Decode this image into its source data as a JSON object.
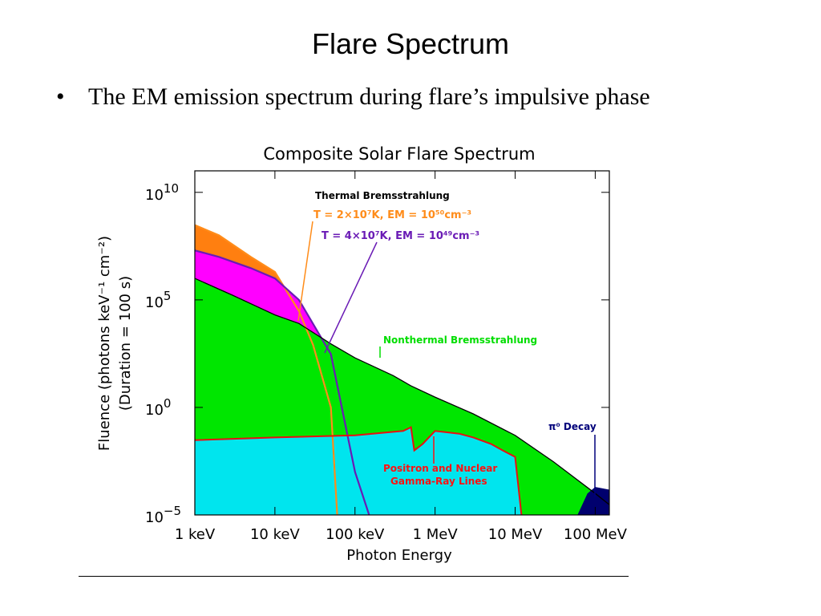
{
  "slide": {
    "title": "Flare Spectrum",
    "bullet_symbol": "•",
    "bullet_text": "The EM emission spectrum during flare’s impulsive phase"
  },
  "colors": {
    "thermal_fill": "#ff7f10",
    "nonthermal_fill": "#00e600",
    "nuclear_fill": "#00e5ee",
    "pion_fill": "#00006e",
    "magenta": "#ff00ff",
    "orange_curve": "#ff8c1a",
    "purple_curve": "#6a1bb5",
    "red_curve": "#e81010",
    "black_envelope": "#000000",
    "green_label": "#00dd00",
    "red_label": "#ff1111",
    "navy_label": "#00007a"
  },
  "chart_data": {
    "type": "area",
    "title": "Composite Solar Flare Spectrum",
    "xlabel": "Photon Energy",
    "ylabel_line1": "Fluence (photons keV⁻¹ cm⁻²)",
    "ylabel_line2": "(Duration = 100 s)",
    "x_scale": "log",
    "y_scale": "log",
    "x_unit": "keV",
    "xlim": [
      1,
      150000
    ],
    "ylim": [
      1e-05,
      100000000000.0
    ],
    "x_ticks": [
      {
        "value": 1,
        "label": "1 keV"
      },
      {
        "value": 10,
        "label": "10 keV"
      },
      {
        "value": 100,
        "label": "100 keV"
      },
      {
        "value": 1000,
        "label": "1 MeV"
      },
      {
        "value": 10000,
        "label": "10 MeV"
      },
      {
        "value": 100000,
        "label": "100 MeV"
      }
    ],
    "y_ticks": [
      {
        "value": 1e-05,
        "base": "10",
        "exp": "−5"
      },
      {
        "value": 1,
        "base": "10",
        "exp": "0"
      },
      {
        "value": 100000.0,
        "base": "10",
        "exp": "5"
      },
      {
        "value": 10000000000.0,
        "base": "10",
        "exp": "10"
      }
    ],
    "series": [
      {
        "name": "Thermal Bremsstrahlung",
        "annotation": "T = 2×10⁷K, EM = 10⁵⁰cm⁻³",
        "x": [
          1,
          2,
          5,
          10,
          20,
          30,
          50,
          60
        ],
        "y": [
          300000000.0,
          100000000.0,
          10000000.0,
          2000000.0,
          30000.0,
          800,
          1,
          1e-05
        ]
      },
      {
        "name": "Thermal Bremsstrahlung",
        "annotation": "T = 4×10⁷K, EM = 10⁴⁹cm⁻³",
        "x": [
          1,
          2,
          5,
          10,
          20,
          50,
          100,
          150
        ],
        "y": [
          20000000.0,
          10000000.0,
          3000000.0,
          1000000.0,
          100000.0,
          300,
          0.001,
          1e-05
        ]
      },
      {
        "name": "Nonthermal Bremsstrahlung",
        "x": [
          1,
          3,
          10,
          20,
          50,
          100,
          300,
          500,
          1000,
          3000,
          10000,
          30000,
          100000,
          150000
        ],
        "y": [
          1000000.0,
          160000.0,
          20000.0,
          8000.0,
          900,
          200,
          30,
          10,
          3,
          0.5,
          0.05,
          0.003,
          0.0001,
          3e-05
        ]
      },
      {
        "name": "Positron and Nuclear Gamma-Ray Lines",
        "x": [
          1,
          10,
          100,
          400,
          500,
          550,
          700,
          1000,
          2000,
          3000,
          5000,
          7000,
          10000,
          12000
        ],
        "y": [
          0.03,
          0.04,
          0.05,
          0.08,
          0.12,
          0.01,
          0.02,
          0.08,
          0.06,
          0.04,
          0.02,
          0.01,
          0.005,
          1e-05
        ]
      },
      {
        "name": "π⁰ Decay",
        "x": [
          60000,
          80000,
          100000,
          150000
        ],
        "y": [
          1e-05,
          0.0001,
          0.0002,
          0.00015
        ]
      }
    ],
    "annotations": {
      "thermal_label": "Thermal Bremsstrahlung",
      "thermal_t1": "T = 2×10⁷K, EM = 10⁵⁰cm⁻³",
      "thermal_t2": "T = 4×10⁷K, EM = 10⁴⁹cm⁻³",
      "nonthermal_label": "Nonthermal Bremsstrahlung",
      "nuclear_label_line1": "Positron and Nuclear",
      "nuclear_label_line2": "Gamma-Ray Lines",
      "pion_label": "π⁰ Decay"
    }
  }
}
